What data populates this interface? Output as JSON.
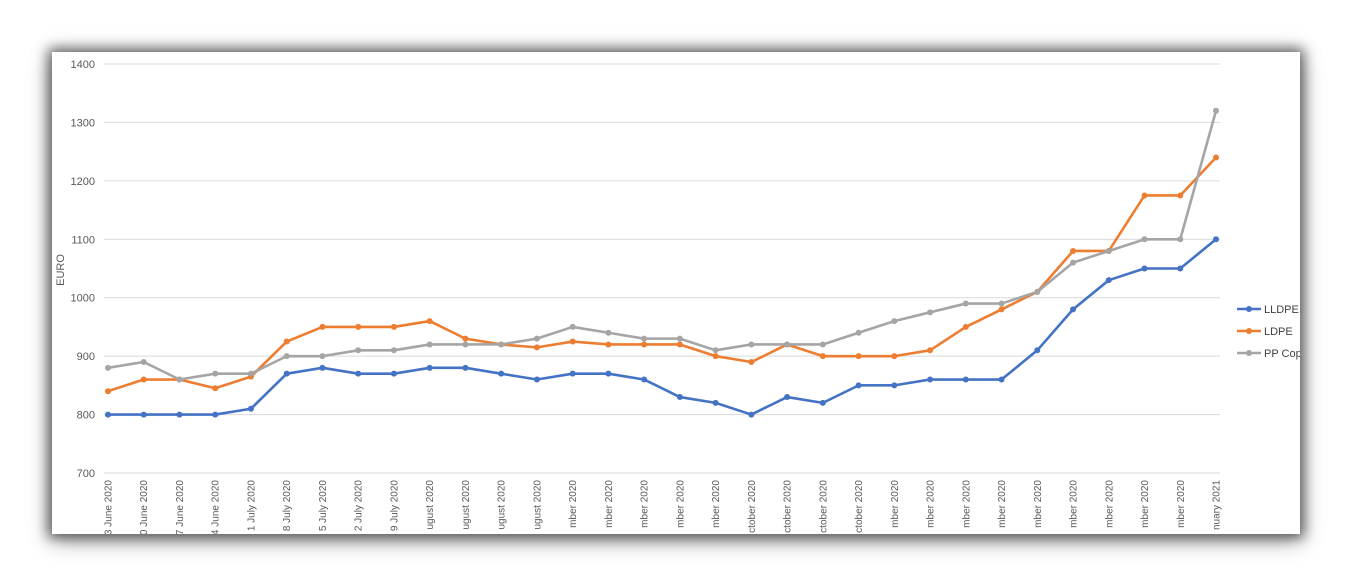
{
  "chart_data": {
    "type": "line",
    "ylabel": "EURO",
    "ylim": [
      700,
      1400
    ],
    "yticks": [
      700,
      800,
      900,
      1000,
      1100,
      1200,
      1300,
      1400
    ],
    "grid": true,
    "legend_position": "right",
    "categories": [
      "3 June 2020",
      "0 June 2020",
      "7 June 2020",
      "4 June 2020",
      "1 July 2020",
      "8 July 2020",
      "5 July 2020",
      "2 July 2020",
      "9 July 2020",
      "ugust 2020",
      "ugust 2020",
      "ugust 2020",
      "ugust 2020",
      "mber 2020",
      "mber 2020",
      "mber 2020",
      "mber 2020",
      "mber 2020",
      "ctober 2020",
      "ctober 2020",
      "ctober 2020",
      "ctober 2020",
      "mber 2020",
      "mber 2020",
      "mber 2020",
      "mber 2020",
      "mber 2020",
      "mber 2020",
      "mber 2020",
      "mber 2020",
      "mber 2020",
      "nuary 2021"
    ],
    "series": [
      {
        "name": "LLDPE",
        "color": "#4472C4",
        "values": [
          800,
          800,
          800,
          800,
          810,
          870,
          880,
          870,
          870,
          880,
          880,
          870,
          860,
          870,
          870,
          860,
          830,
          820,
          800,
          830,
          820,
          850,
          850,
          860,
          860,
          860,
          910,
          980,
          1030,
          1050,
          1050,
          1100
        ]
      },
      {
        "name": "LDPE",
        "color": "#ED7D31",
        "values": [
          840,
          860,
          860,
          845,
          865,
          925,
          950,
          950,
          950,
          960,
          930,
          920,
          915,
          925,
          920,
          920,
          920,
          900,
          890,
          920,
          900,
          900,
          900,
          910,
          950,
          980,
          1010,
          1080,
          1080,
          1175,
          1175,
          1240
        ]
      },
      {
        "name": "PP Cop",
        "color": "#A5A5A5",
        "values": [
          880,
          890,
          860,
          870,
          870,
          900,
          900,
          910,
          910,
          920,
          920,
          920,
          930,
          950,
          940,
          930,
          930,
          910,
          920,
          920,
          920,
          940,
          960,
          975,
          990,
          990,
          1010,
          1060,
          1080,
          1100,
          1100,
          1320
        ]
      }
    ]
  }
}
